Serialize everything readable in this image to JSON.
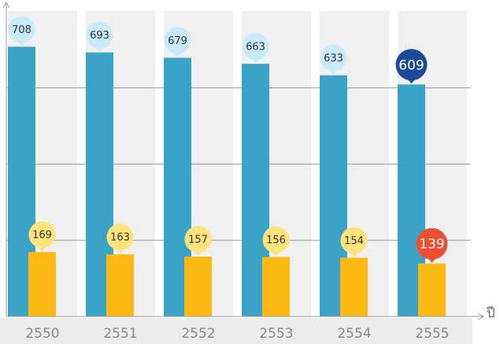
{
  "chart_data": {
    "type": "bar",
    "categories": [
      "2550",
      "2551",
      "2552",
      "2553",
      "2554",
      "2555"
    ],
    "x_label": "ปี",
    "series": [
      {
        "color": "#3aa3c8",
        "label_color": "#c9eaf8",
        "highlight_label_color": "#1c4a98",
        "values": [
          708,
          693,
          679,
          663,
          633,
          609
        ]
      },
      {
        "color": "#fdb913",
        "label_color": "#fde37c",
        "highlight_label_color": "#ef4e33",
        "values": [
          169,
          163,
          157,
          156,
          154,
          139
        ]
      }
    ],
    "highlight_index": 5,
    "ylim": [
      0,
      810
    ],
    "gridlines": [
      200,
      400,
      600
    ]
  }
}
